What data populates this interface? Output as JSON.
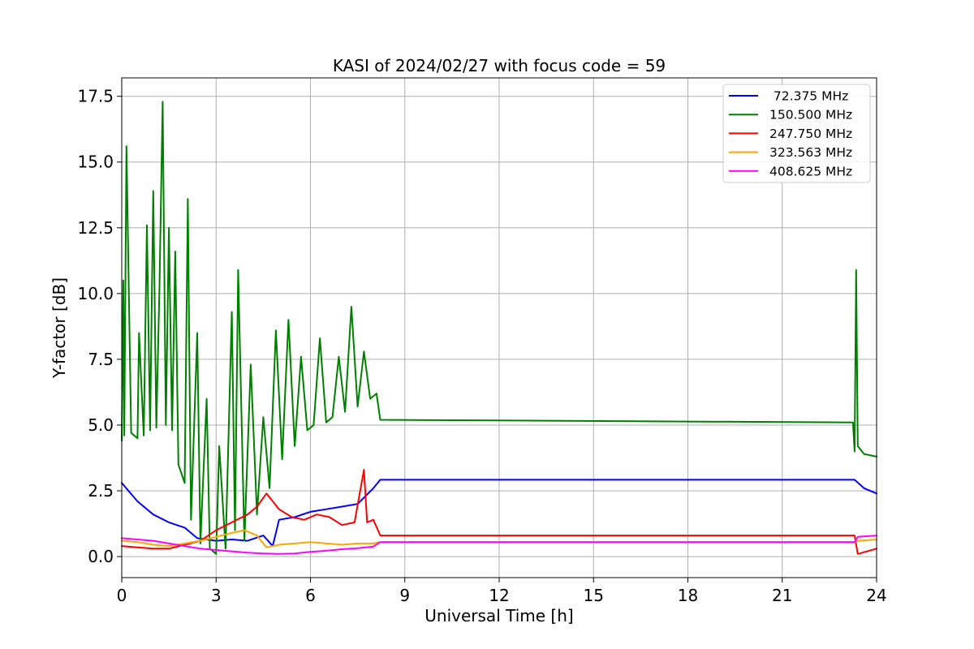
{
  "chart_data": {
    "type": "line",
    "title": "KASI of 2024/02/27 with focus code = 59",
    "xlabel": "Universal Time [h]",
    "ylabel": "Y-factor [dB]",
    "xlim": [
      0,
      24
    ],
    "ylim": [
      -0.8,
      18.2
    ],
    "xticks": [
      0,
      3,
      6,
      9,
      12,
      15,
      18,
      21,
      24
    ],
    "xtick_labels": [
      "0",
      "3",
      "6",
      "9",
      "12",
      "15",
      "18",
      "21",
      "24"
    ],
    "yticks": [
      0.0,
      2.5,
      5.0,
      7.5,
      10.0,
      12.5,
      15.0,
      17.5
    ],
    "ytick_labels": [
      "0.0",
      "2.5",
      "5.0",
      "7.5",
      "10.0",
      "12.5",
      "15.0",
      "17.5"
    ],
    "grid": true,
    "legend_position": "top-right",
    "series": [
      {
        "name": " 72.375 MHz",
        "color": "#0000ff",
        "x": [
          0,
          0.5,
          1,
          1.5,
          2,
          2.4,
          3,
          3.5,
          4,
          4.5,
          4.8,
          5,
          5.5,
          6,
          6.5,
          7,
          7.5,
          8,
          8.22,
          23.3,
          23.6,
          24
        ],
        "y": [
          2.8,
          2.1,
          1.6,
          1.3,
          1.1,
          0.7,
          0.6,
          0.65,
          0.6,
          0.8,
          0.4,
          1.4,
          1.5,
          1.7,
          1.8,
          1.9,
          2.0,
          2.6,
          2.92,
          2.92,
          2.6,
          2.4
        ]
      },
      {
        "name": "150.500 MHz",
        "color": "#008000",
        "x": [
          0,
          0.05,
          0.08,
          0.15,
          0.3,
          0.5,
          0.55,
          0.7,
          0.8,
          0.9,
          1,
          1.1,
          1.2,
          1.3,
          1.4,
          1.5,
          1.6,
          1.7,
          1.8,
          2,
          2.1,
          2.2,
          2.4,
          2.5,
          2.7,
          2.8,
          3,
          3.1,
          3.3,
          3.5,
          3.6,
          3.7,
          3.9,
          4.1,
          4.3,
          4.5,
          4.7,
          4.9,
          5.1,
          5.3,
          5.5,
          5.7,
          5.9,
          6.1,
          6.3,
          6.5,
          6.7,
          6.9,
          7.1,
          7.3,
          7.5,
          7.7,
          7.9,
          8.1,
          8.22,
          23.25,
          23.3,
          23.35,
          23.4,
          23.6,
          24
        ],
        "y": [
          4.4,
          10.5,
          4.6,
          15.6,
          4.7,
          4.5,
          8.5,
          4.6,
          12.6,
          4.8,
          13.9,
          4.9,
          10.3,
          17.3,
          5.0,
          12.5,
          4.8,
          11.6,
          3.5,
          2.8,
          13.6,
          1.4,
          8.5,
          0.5,
          6.0,
          0.3,
          0.1,
          4.2,
          0.3,
          9.3,
          1.0,
          10.9,
          0.6,
          7.3,
          1.6,
          5.3,
          2.6,
          8.6,
          3.7,
          9.0,
          4.2,
          7.6,
          4.8,
          5.0,
          8.3,
          5.1,
          5.3,
          7.6,
          5.5,
          9.5,
          5.7,
          7.8,
          6.0,
          6.2,
          5.2,
          5.1,
          4.0,
          10.9,
          4.2,
          3.9,
          3.8
        ]
      },
      {
        "name": "247.750 MHz",
        "color": "#ff0000",
        "x": [
          0,
          0.5,
          1,
          1.5,
          2,
          2.5,
          3,
          3.5,
          4,
          4.3,
          4.6,
          5,
          5.4,
          5.8,
          6.2,
          6.6,
          7,
          7.4,
          7.7,
          7.8,
          8,
          8.22,
          23.3,
          23.4,
          24
        ],
        "y": [
          0.4,
          0.35,
          0.3,
          0.3,
          0.45,
          0.6,
          1.0,
          1.3,
          1.6,
          1.9,
          2.4,
          1.8,
          1.5,
          1.4,
          1.6,
          1.5,
          1.2,
          1.3,
          3.3,
          1.3,
          1.4,
          0.8,
          0.8,
          0.1,
          0.3
        ]
      },
      {
        "name": "323.563 MHz",
        "color": "#ffa500",
        "x": [
          0,
          0.5,
          1,
          1.5,
          2,
          2.5,
          3,
          3.5,
          3.9,
          4.3,
          4.6,
          5,
          5.5,
          6,
          6.5,
          7,
          7.5,
          8,
          8.22,
          23.3,
          23.4,
          24
        ],
        "y": [
          0.6,
          0.55,
          0.45,
          0.4,
          0.5,
          0.6,
          0.75,
          0.9,
          1.0,
          0.8,
          0.35,
          0.45,
          0.5,
          0.55,
          0.5,
          0.45,
          0.5,
          0.5,
          0.55,
          0.55,
          0.6,
          0.65
        ]
      },
      {
        "name": "408.625 MHz",
        "color": "#ff00ff",
        "x": [
          0,
          0.5,
          1,
          1.5,
          2,
          2.5,
          3,
          3.5,
          4,
          4.5,
          5,
          5.5,
          6,
          6.5,
          7,
          7.5,
          8,
          8.22,
          23.3,
          23.4,
          24
        ],
        "y": [
          0.7,
          0.65,
          0.6,
          0.5,
          0.4,
          0.3,
          0.25,
          0.2,
          0.15,
          0.12,
          0.1,
          0.12,
          0.18,
          0.22,
          0.28,
          0.32,
          0.38,
          0.55,
          0.55,
          0.75,
          0.8
        ]
      }
    ]
  }
}
